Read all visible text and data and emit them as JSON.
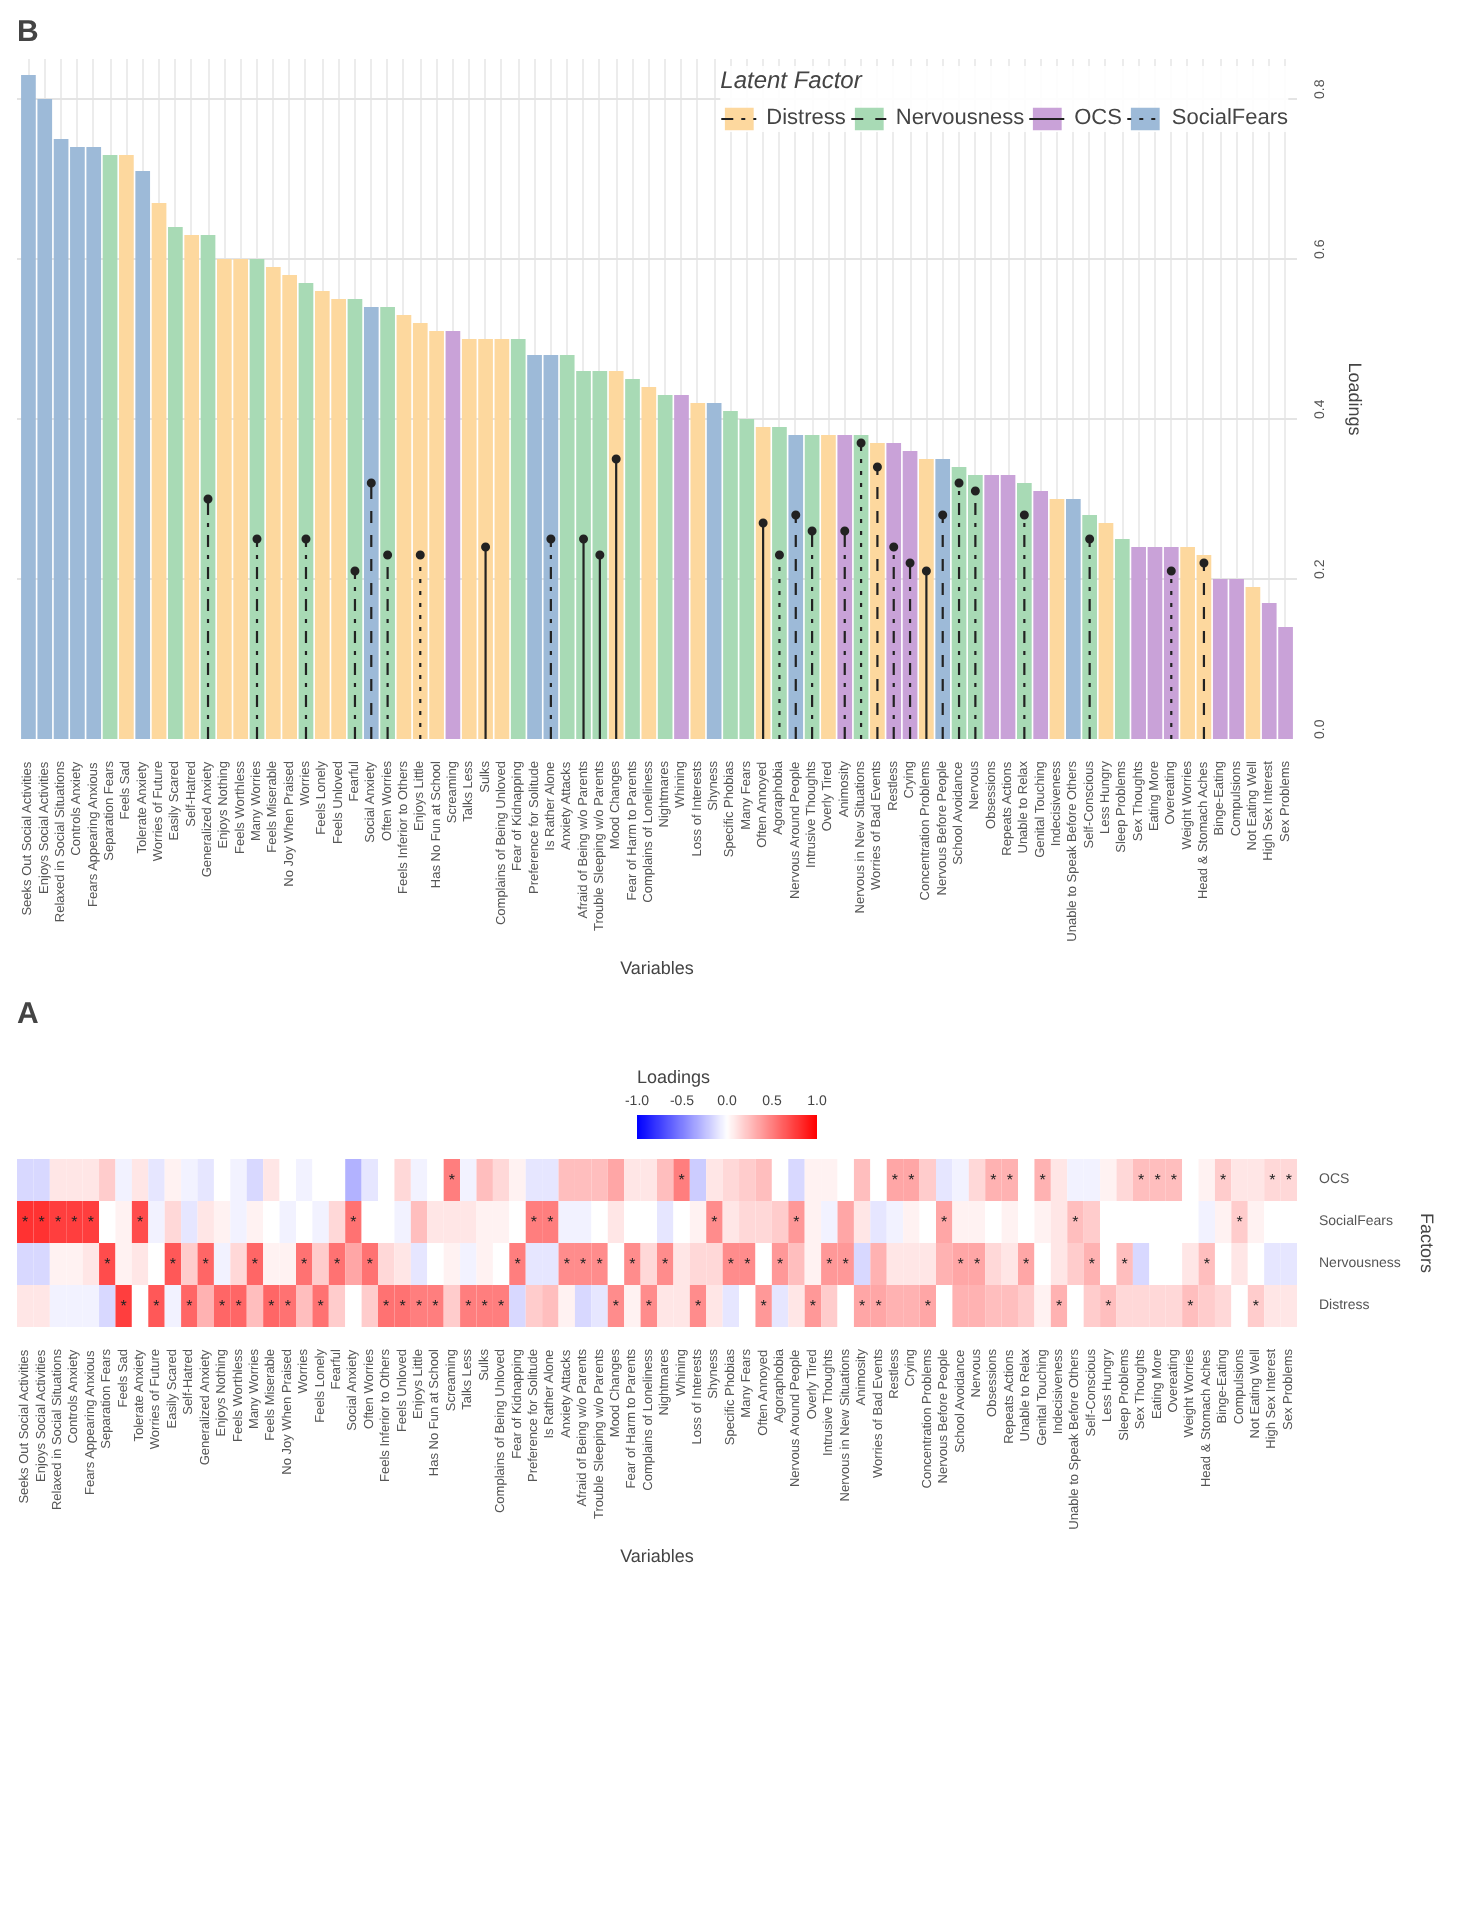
{
  "chart_data": [
    {
      "type": "bar",
      "title": "B",
      "xlabel": "Variables",
      "ylabel": "Loadings",
      "legend_title": "Latent Factor",
      "legend": "top right",
      "grid": true,
      "categories": [
        "Seeks Out Social Activities",
        "Enjoys Social Activities",
        "Relaxed in Social Situations",
        "Controls Anxiety",
        "Fears Appearing Anxious",
        "Separation Fears",
        "Feels Sad",
        "Tolerate Anxiety",
        "Worries of Future",
        "Easily Scared",
        "Self-Hatred",
        "Generalized Anxiety",
        "Enjoys Nothing",
        "Feels Worthless",
        "Many Worries",
        "Feels Miserable",
        "No Joy When Praised",
        "Worries",
        "Feels Lonely",
        "Feels Unloved",
        "Fearful",
        "Social Anxiety",
        "Often Worries",
        "Feels Inferior to Others",
        "Enjoys Little",
        "Has No Fun at School",
        "Screaming",
        "Talks Less",
        "Sulks",
        "Complains of Being Unloved",
        "Fear of Kidnapping",
        "Preference for Solitude",
        "Is Rather Alone",
        "Anxiety Attacks",
        "Afraid of Being w/o Parents",
        "Trouble Sleeping w/o Parents",
        "Mood Changes",
        "Fear of Harm to Parents",
        "Complains of Loneliness",
        "Nightmares",
        "Whining",
        "Loss of Interests",
        "Shyness",
        "Specific Phobias",
        "Many Fears",
        "Often Annoyed",
        "Agoraphobia",
        "Nervous Around People",
        "Intrusive Thoughts",
        "Overly Tired",
        "Animosity",
        "Nervous in New Situations",
        "Worries of Bad Events",
        "Restless",
        "Crying",
        "Concentration Problems",
        "Nervous Before People",
        "School Avoidance",
        "Nervous",
        "Obsessions",
        "Repeats Actions",
        "Unable to Relax",
        "Genital Touching",
        "Indecisiveness",
        "Unable to Speak Before Others",
        "Self-Conscious",
        "Less Hungry",
        "Sleep Problems",
        "Sex Thoughts",
        "Eating More",
        "Overeating",
        "Weight Worries",
        "Head & Stomach Aches",
        "Binge-Eating",
        "Compulsions",
        "Not Eating Well",
        "High Sex Interest",
        "Sex Problems"
      ],
      "ylim": [
        0,
        0.85
      ],
      "yticks": [
        {
          "value": 0,
          "label": "0.0"
        },
        {
          "value": 0.2,
          "label": "0.2"
        },
        {
          "value": 0.4,
          "label": "0.4"
        },
        {
          "value": 0.6,
          "label": "0.6"
        },
        {
          "value": 0.8,
          "label": "0.8"
        }
      ],
      "series": [
        {
          "name": "Distress",
          "type": "bar",
          "color": "#fdd89e",
          "values": [
            null,
            null,
            null,
            null,
            null,
            null,
            0.73,
            null,
            0.67,
            null,
            0.63,
            null,
            0.6,
            0.6,
            null,
            0.59,
            0.58,
            null,
            0.56,
            0.55,
            null,
            null,
            null,
            0.53,
            0.52,
            0.51,
            null,
            0.5,
            0.5,
            0.5,
            null,
            null,
            null,
            null,
            null,
            null,
            0.46,
            null,
            0.44,
            null,
            null,
            0.42,
            null,
            null,
            null,
            0.39,
            null,
            null,
            null,
            0.38,
            null,
            null,
            0.37,
            null,
            null,
            0.35,
            null,
            null,
            null,
            null,
            null,
            null,
            null,
            0.3,
            null,
            null,
            0.27,
            null,
            null,
            null,
            null,
            0.24,
            0.23,
            null,
            null,
            0.19,
            null,
            null
          ]
        },
        {
          "name": "Nervousness",
          "type": "bar",
          "color": "#a8dab5",
          "values": [
            null,
            null,
            null,
            null,
            null,
            0.73,
            null,
            null,
            null,
            0.64,
            null,
            0.63,
            null,
            null,
            0.6,
            null,
            null,
            0.57,
            null,
            null,
            0.55,
            null,
            0.54,
            null,
            null,
            null,
            null,
            null,
            null,
            null,
            0.5,
            null,
            null,
            0.48,
            0.46,
            0.46,
            null,
            0.45,
            null,
            0.43,
            null,
            null,
            null,
            0.41,
            0.4,
            null,
            0.39,
            null,
            0.38,
            null,
            null,
            0.38,
            null,
            null,
            null,
            null,
            null,
            0.34,
            0.33,
            null,
            null,
            0.32,
            null,
            null,
            null,
            0.28,
            null,
            0.25,
            null,
            null,
            null,
            null,
            null,
            null,
            null,
            null,
            null,
            null
          ]
        },
        {
          "name": "OCS",
          "type": "bar",
          "color": "#c9a2d8",
          "values": [
            null,
            null,
            null,
            null,
            null,
            null,
            null,
            null,
            null,
            null,
            null,
            null,
            null,
            null,
            null,
            null,
            null,
            null,
            null,
            null,
            null,
            null,
            null,
            null,
            null,
            null,
            0.51,
            null,
            null,
            null,
            null,
            null,
            null,
            null,
            null,
            null,
            null,
            null,
            null,
            null,
            0.43,
            null,
            null,
            null,
            null,
            null,
            null,
            null,
            null,
            null,
            0.38,
            null,
            null,
            0.37,
            0.36,
            null,
            null,
            null,
            null,
            0.33,
            0.33,
            null,
            0.31,
            null,
            null,
            null,
            null,
            null,
            0.24,
            0.24,
            0.24,
            null,
            null,
            0.2,
            0.2,
            null,
            0.17,
            0.14
          ]
        },
        {
          "name": "SocialFears",
          "type": "bar",
          "color": "#9dbad8",
          "values": [
            0.83,
            0.8,
            0.75,
            0.74,
            0.74,
            null,
            null,
            0.71,
            null,
            null,
            null,
            null,
            null,
            null,
            null,
            null,
            null,
            null,
            null,
            null,
            null,
            0.54,
            null,
            null,
            null,
            null,
            null,
            null,
            null,
            null,
            null,
            0.48,
            0.48,
            null,
            null,
            null,
            null,
            null,
            null,
            null,
            null,
            null,
            0.42,
            null,
            null,
            null,
            null,
            0.38,
            null,
            null,
            null,
            null,
            null,
            null,
            null,
            null,
            0.35,
            null,
            null,
            null,
            null,
            null,
            null,
            null,
            0.3,
            null,
            null,
            null,
            null,
            null,
            null,
            null,
            null,
            null,
            null,
            null,
            null,
            null
          ]
        },
        {
          "type": "lollipop",
          "color": "#222222",
          "line_style": "dashdot",
          "marker": "circle",
          "values": [
            null,
            null,
            null,
            null,
            null,
            null,
            null,
            null,
            null,
            null,
            null,
            0.3,
            null,
            null,
            0.25,
            null,
            null,
            0.25,
            null,
            null,
            0.21,
            null,
            0.23,
            null,
            null,
            null,
            null,
            null,
            null,
            null,
            null,
            null,
            0.25,
            null,
            null,
            null,
            null,
            null,
            null,
            null,
            null,
            null,
            null,
            null,
            null,
            null,
            null,
            null,
            0.26,
            null,
            0.26,
            null,
            null,
            0.24,
            0.22,
            null,
            null,
            0.32,
            0.31,
            null,
            null,
            0.28,
            null,
            null,
            null,
            0.25,
            null,
            null,
            null,
            null,
            null,
            null,
            null,
            null,
            null,
            null,
            null,
            null
          ]
        },
        {
          "type": "lollipop",
          "color": "#222222",
          "line_style": "dashed",
          "marker": "circle",
          "values": [
            null,
            null,
            null,
            null,
            null,
            null,
            null,
            null,
            null,
            null,
            null,
            null,
            null,
            null,
            null,
            null,
            null,
            null,
            null,
            null,
            null,
            0.32,
            null,
            null,
            null,
            null,
            null,
            null,
            null,
            null,
            null,
            null,
            null,
            null,
            null,
            null,
            null,
            null,
            null,
            null,
            null,
            null,
            null,
            null,
            null,
            null,
            null,
            0.28,
            null,
            null,
            null,
            null,
            0.34,
            null,
            null,
            null,
            0.28,
            null,
            null,
            null,
            null,
            null,
            null,
            null,
            null,
            null,
            null,
            null,
            null,
            null,
            null,
            null,
            0.22,
            null,
            null,
            null,
            null,
            null
          ]
        },
        {
          "type": "lollipop",
          "color": "#222222",
          "line_style": "solid",
          "marker": "circle",
          "values": [
            null,
            null,
            null,
            null,
            null,
            null,
            null,
            null,
            null,
            null,
            null,
            null,
            null,
            null,
            null,
            null,
            null,
            null,
            null,
            null,
            null,
            null,
            null,
            null,
            null,
            null,
            null,
            null,
            0.24,
            null,
            null,
            null,
            null,
            null,
            0.25,
            0.23,
            0.35,
            null,
            null,
            null,
            null,
            null,
            null,
            null,
            null,
            0.27,
            null,
            null,
            null,
            null,
            null,
            null,
            null,
            null,
            null,
            0.21,
            null,
            null,
            null,
            null,
            null,
            null,
            null,
            null,
            null,
            null,
            null,
            null,
            null,
            null,
            null,
            null,
            null,
            null,
            null,
            null,
            null,
            null
          ]
        },
        {
          "type": "lollipop",
          "color": "#222222",
          "line_style": "dotted",
          "marker": "circle",
          "values": [
            null,
            null,
            null,
            null,
            null,
            null,
            null,
            null,
            null,
            null,
            null,
            null,
            null,
            null,
            null,
            null,
            null,
            null,
            null,
            null,
            null,
            null,
            null,
            null,
            0.23,
            null,
            null,
            null,
            null,
            null,
            null,
            null,
            null,
            null,
            null,
            null,
            null,
            null,
            null,
            null,
            null,
            null,
            null,
            null,
            null,
            null,
            0.23,
            null,
            null,
            null,
            null,
            0.37,
            null,
            null,
            null,
            null,
            null,
            null,
            null,
            null,
            null,
            null,
            null,
            null,
            null,
            null,
            null,
            null,
            null,
            null,
            0.21,
            null,
            null,
            null,
            null,
            null,
            null,
            null
          ]
        }
      ]
    },
    {
      "type": "heatmap",
      "title": "A",
      "xlabel": "Variables",
      "ylabel": "Factors",
      "clabel": "Loadings",
      "categories": [
        "Seeks Out Social Activities",
        "Enjoys Social Activities",
        "Relaxed in Social Situations",
        "Controls Anxiety",
        "Fears Appearing Anxious",
        "Separation Fears",
        "Feels Sad",
        "Tolerate Anxiety",
        "Worries of Future",
        "Easily Scared",
        "Self-Hatred",
        "Generalized Anxiety",
        "Enjoys Nothing",
        "Feels Worthless",
        "Many Worries",
        "Feels Miserable",
        "No Joy When Praised",
        "Worries",
        "Feels Lonely",
        "Fearful",
        "Social Anxiety",
        "Often Worries",
        "Feels Inferior to Others",
        "Feels Unloved",
        "Enjoys Little",
        "Has No Fun at School",
        "Screaming",
        "Talks Less",
        "Sulks",
        "Complains of Being Unloved",
        "Fear of Kidnapping",
        "Preference for Solitude",
        "Is Rather Alone",
        "Anxiety Attacks",
        "Afraid of Being w/o Parents",
        "Trouble Sleeping w/o Parents",
        "Mood Changes",
        "Fear of Harm to Parents",
        "Complains of Loneliness",
        "Nightmares",
        "Whining",
        "Loss of Interests",
        "Shyness",
        "Specific Phobias",
        "Many Fears",
        "Often Annoyed",
        "Agoraphobia",
        "Nervous Around People",
        "Overly Tired",
        "Intrusive Thoughts",
        "Nervous in New Situations",
        "Animosity",
        "Worries of Bad Events",
        "Restless",
        "Crying",
        "Concentration Problems",
        "Nervous Before People",
        "School Avoidance",
        "Nervous",
        "Obsessions",
        "Repeats Actions",
        "Unable to Relax",
        "Genital Touching",
        "Indecisiveness",
        "Unable to Speak Before Others",
        "Self-Conscious",
        "Less Hungry",
        "Sleep Problems",
        "Sex Thoughts",
        "Eating More",
        "Overeating",
        "Weight Worries",
        "Head & Stomach Aches",
        "Binge-Eating",
        "Compulsions",
        "Not Eating Well",
        "High Sex Interest",
        "Sex Problems"
      ],
      "y_categories": [
        "OCS",
        "SocialFears",
        "Nervousness",
        "Distress"
      ],
      "clim": [
        -1,
        1
      ],
      "cticks": [
        {
          "value": -1,
          "label": "-1.0"
        },
        {
          "value": -0.5,
          "label": "-0.5"
        },
        {
          "value": 0,
          "label": "0.0"
        },
        {
          "value": 0.5,
          "label": "0.5"
        },
        {
          "value": 1,
          "label": "1.0"
        }
      ],
      "cells": [
        [
          -0.15,
          -0.15,
          0.1,
          0.1,
          0.1,
          0.2,
          -0.05,
          0.1,
          -0.1,
          0.05,
          -0.05,
          -0.1,
          0,
          -0.05,
          -0.15,
          0.1,
          0,
          -0.05,
          0,
          0,
          -0.3,
          -0.1,
          0,
          0.15,
          -0.05,
          0,
          0.5,
          -0.05,
          0.25,
          0.15,
          0.05,
          -0.1,
          -0.1,
          0.25,
          0.25,
          0.25,
          0.35,
          0.1,
          0.1,
          0.25,
          0.5,
          -0.2,
          0.1,
          0.15,
          0.2,
          0.25,
          0,
          -0.15,
          0.05,
          0.05,
          0,
          0.25,
          0,
          0.35,
          0.35,
          0.2,
          -0.1,
          -0.05,
          0.15,
          0.3,
          0.3,
          0,
          0.3,
          0.1,
          -0.05,
          -0.05,
          0.05,
          0.15,
          0.25,
          0.25,
          0.25,
          0,
          0.05,
          0.2,
          0.1,
          0.1,
          0.15,
          0.15
        ],
        [
          0.8,
          0.8,
          0.75,
          0.75,
          0.75,
          0,
          0.05,
          0.7,
          -0.05,
          0.15,
          -0.1,
          0.1,
          0.05,
          -0.05,
          0.05,
          0,
          -0.05,
          0,
          -0.05,
          0.15,
          0.55,
          0,
          0,
          -0.05,
          0.25,
          0.1,
          0.1,
          0.1,
          0.05,
          0.05,
          0,
          0.5,
          0.5,
          -0.05,
          -0.05,
          0,
          0.1,
          0,
          0,
          -0.1,
          0,
          0.05,
          0.45,
          0.1,
          0.15,
          0.15,
          0.2,
          0.4,
          0.05,
          -0.05,
          0.35,
          0.1,
          -0.1,
          -0.05,
          0.05,
          0,
          0.35,
          0.05,
          0.05,
          0,
          0.05,
          0,
          0.05,
          0.1,
          0.25,
          0.2,
          0,
          0,
          0,
          0,
          0,
          0,
          -0.05,
          0.05,
          0.2,
          0.05,
          0,
          0
        ],
        [
          -0.15,
          -0.15,
          0.05,
          0.05,
          0.1,
          0.7,
          0.05,
          0.1,
          0,
          0.65,
          0.2,
          0.6,
          -0.05,
          0.15,
          0.6,
          0.05,
          0.05,
          0.55,
          0.2,
          0.55,
          0.35,
          0.55,
          0.15,
          0.1,
          -0.1,
          0,
          0.05,
          -0.05,
          0.05,
          0,
          0.5,
          -0.1,
          -0.1,
          0.45,
          0.45,
          0.45,
          0,
          0.45,
          0.15,
          0.45,
          0.1,
          0.15,
          0.15,
          0.45,
          0.45,
          0,
          0.4,
          0.25,
          0.05,
          0.4,
          0.4,
          -0.15,
          0.3,
          0.1,
          0.1,
          0.1,
          0.3,
          0.35,
          0.35,
          0.15,
          0.1,
          0.35,
          0,
          0.1,
          0.2,
          0.3,
          0,
          0.25,
          -0.15,
          0,
          0,
          0.1,
          0.25,
          0,
          0.1,
          0,
          -0.1,
          -0.1
        ],
        [
          0.1,
          0.1,
          -0.05,
          -0.05,
          -0.05,
          -0.15,
          0.75,
          0,
          0.65,
          -0.05,
          0.6,
          0.3,
          0.6,
          0.6,
          0.25,
          0.6,
          0.55,
          0.25,
          0.55,
          0.2,
          0,
          0.2,
          0.55,
          0.55,
          0.5,
          0.5,
          0.2,
          0.5,
          0.5,
          0.5,
          -0.15,
          0.2,
          0.25,
          0.05,
          -0.15,
          -0.1,
          0.45,
          0.05,
          0.45,
          0.1,
          0.1,
          0.45,
          0.1,
          -0.1,
          0,
          0.4,
          -0.1,
          0.1,
          0.4,
          0.2,
          0,
          0.35,
          0.35,
          0.3,
          0.3,
          0.35,
          0,
          0.3,
          0.3,
          0.25,
          0.25,
          0.2,
          0.05,
          0.3,
          0,
          0.2,
          0.25,
          0.15,
          0.15,
          0.15,
          0.15,
          0.25,
          0.2,
          0.15,
          0,
          0.2,
          0.1,
          0.1
        ]
      ],
      "cell_labels": [
        [
          null,
          null,
          null,
          null,
          null,
          null,
          null,
          null,
          null,
          null,
          null,
          null,
          null,
          null,
          null,
          null,
          null,
          null,
          null,
          null,
          null,
          null,
          null,
          null,
          null,
          null,
          "*",
          null,
          null,
          null,
          null,
          null,
          null,
          null,
          null,
          null,
          null,
          null,
          null,
          null,
          "*",
          null,
          null,
          null,
          null,
          null,
          null,
          null,
          null,
          null,
          null,
          null,
          null,
          "*",
          "*",
          null,
          null,
          null,
          null,
          "*",
          "*",
          null,
          "*",
          null,
          null,
          null,
          null,
          null,
          "*",
          "*",
          "*",
          null,
          null,
          "*",
          null,
          null,
          "*",
          "*"
        ],
        [
          "*",
          "*",
          "*",
          "*",
          "*",
          null,
          null,
          "*",
          null,
          null,
          null,
          null,
          null,
          null,
          null,
          null,
          null,
          null,
          null,
          null,
          "*",
          null,
          null,
          null,
          null,
          null,
          null,
          null,
          null,
          null,
          null,
          "*",
          "*",
          null,
          null,
          null,
          null,
          null,
          null,
          null,
          null,
          null,
          "*",
          null,
          null,
          null,
          null,
          "*",
          null,
          null,
          null,
          null,
          null,
          null,
          null,
          null,
          "*",
          null,
          null,
          null,
          null,
          null,
          null,
          null,
          "*",
          null,
          null,
          null,
          null,
          null,
          null,
          null,
          null,
          null,
          "*",
          null,
          null,
          null
        ],
        [
          null,
          null,
          null,
          null,
          null,
          "*",
          null,
          null,
          null,
          "*",
          null,
          "*",
          null,
          null,
          "*",
          null,
          null,
          "*",
          null,
          "*",
          null,
          "*",
          null,
          null,
          null,
          null,
          null,
          null,
          null,
          null,
          "*",
          null,
          null,
          "*",
          "*",
          "*",
          null,
          "*",
          null,
          "*",
          null,
          null,
          null,
          "*",
          "*",
          null,
          "*",
          null,
          null,
          "*",
          "*",
          null,
          null,
          null,
          null,
          null,
          null,
          "*",
          "*",
          null,
          null,
          "*",
          null,
          null,
          null,
          "*",
          null,
          "*",
          null,
          null,
          null,
          null,
          "*",
          null,
          null,
          null,
          null,
          null
        ],
        [
          null,
          null,
          null,
          null,
          null,
          null,
          "*",
          null,
          "*",
          null,
          "*",
          null,
          "*",
          "*",
          null,
          "*",
          "*",
          null,
          "*",
          null,
          null,
          null,
          "*",
          "*",
          "*",
          "*",
          null,
          "*",
          "*",
          "*",
          null,
          null,
          null,
          null,
          null,
          null,
          "*",
          null,
          "*",
          null,
          null,
          "*",
          null,
          null,
          null,
          "*",
          null,
          null,
          "*",
          null,
          null,
          "*",
          "*",
          null,
          null,
          "*",
          null,
          null,
          null,
          null,
          null,
          null,
          null,
          "*",
          null,
          null,
          "*",
          null,
          null,
          null,
          null,
          "*",
          null,
          null,
          null,
          "*",
          null,
          null
        ]
      ]
    }
  ]
}
